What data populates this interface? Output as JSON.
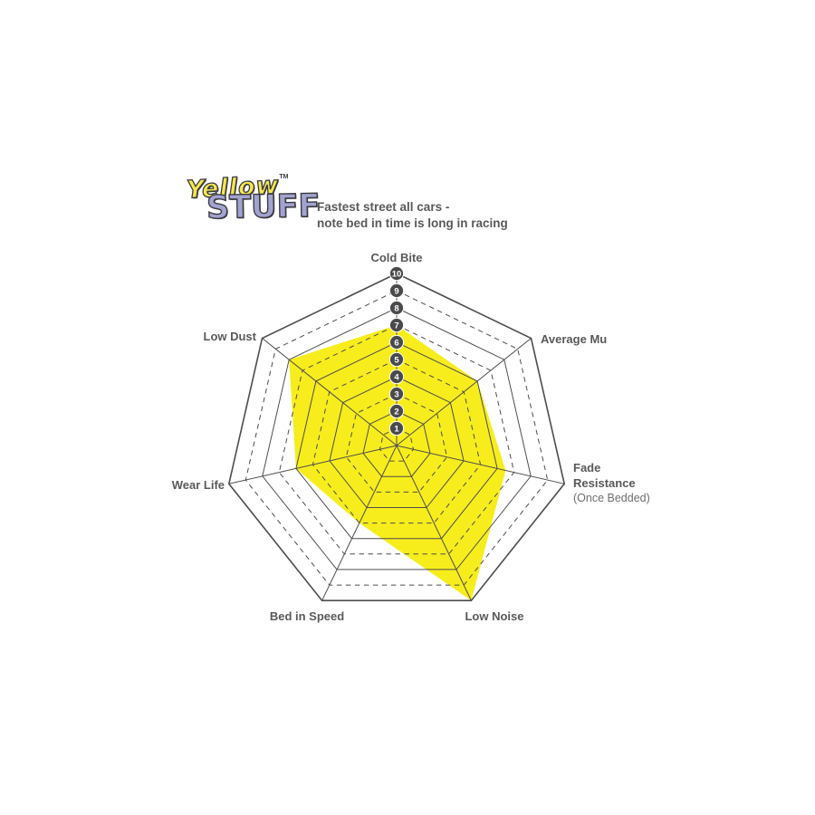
{
  "logo": {
    "line1": "Yellow",
    "tm": "TM",
    "line2": "STUFF",
    "colors": {
      "yellow": "#F6E74A",
      "lavender": "#A3A3D1",
      "outline": "#3B3B41"
    }
  },
  "header": {
    "description_line1": "Fastest street all cars -",
    "description_line2": "note bed in time is long in racing"
  },
  "chart_data": {
    "type": "radar",
    "axes": [
      "Cold Bite",
      "Average Mu",
      "Fade Resistance",
      "Low Noise",
      "Bed in Speed",
      "Wear Life",
      "Low Dust"
    ],
    "axis_label_lines": [
      [
        "Cold Bite"
      ],
      [
        "Average Mu"
      ],
      [
        "Fade",
        "Resistance"
      ],
      [
        "Low Noise"
      ],
      [
        "Bed in Speed"
      ],
      [
        "Wear Life"
      ],
      [
        "Low Dust"
      ]
    ],
    "axis_sublabels": [
      "",
      "",
      "(Once Bedded)",
      "",
      "",
      "",
      ""
    ],
    "values": [
      7,
      6,
      6.5,
      10,
      5,
      6,
      8
    ],
    "scale_min": 1,
    "scale_max": 10,
    "scale_ticks": [
      1,
      2,
      3,
      4,
      5,
      6,
      7,
      8,
      9,
      10
    ],
    "grid": "on",
    "grid_style": "even rings solid, odd rings dashed",
    "legend_position": "none",
    "fill_color": "#F7ED1C",
    "grid_color": "#4D4D4F",
    "badge_fill": "#4A4A4C",
    "badge_text_color": "#FFFFFF",
    "label_color": "#58595B",
    "sublabel_color": "#6D6E71"
  }
}
